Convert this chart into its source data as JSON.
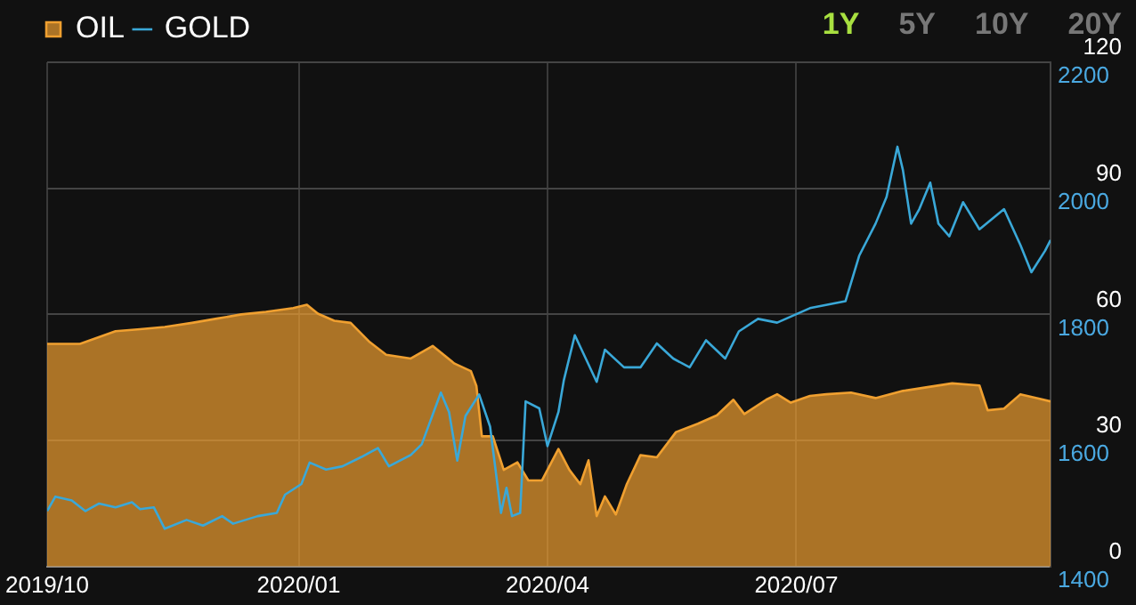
{
  "chart_data": {
    "type": "line",
    "legend": "top left",
    "grid": true,
    "marker": "none",
    "annotations": [
      "1Y",
      "5Y",
      "10Y",
      "20Y"
    ],
    "xlim": [
      "2019-10-01",
      "2020-10-02"
    ],
    "xticks": [
      {
        "value": "2019-10-01",
        "label": "2019/10"
      },
      {
        "value": "2020-01-01",
        "label": "2020/01"
      },
      {
        "value": "2020-04-01",
        "label": "2020/04"
      },
      {
        "value": "2020-07-01",
        "label": "2020/07"
      }
    ],
    "ylim": [
      0,
      120
    ],
    "yticks": [
      0,
      30,
      60,
      90,
      120
    ],
    "y2lim": [
      1400,
      2200
    ],
    "y2ticks": [
      1400,
      1600,
      1800,
      2000,
      2200
    ],
    "series": [
      {
        "name": "OIL",
        "type": "area",
        "color": "#f0a030",
        "x": [
          "2019-10-01",
          "2019-10-13",
          "2019-10-26",
          "2019-11-04",
          "2019-11-13",
          "2019-11-23",
          "2019-12-02",
          "2019-12-11",
          "2019-12-20",
          "2019-12-30",
          "2020-01-04",
          "2020-01-08",
          "2020-01-14",
          "2020-01-20",
          "2020-01-27",
          "2020-02-02",
          "2020-02-11",
          "2020-02-19",
          "2020-02-27",
          "2020-03-04",
          "2020-03-06",
          "2020-03-08",
          "2020-03-12",
          "2020-03-16",
          "2020-03-21",
          "2020-03-25",
          "2020-03-30",
          "2020-04-05",
          "2020-04-09",
          "2020-04-13",
          "2020-04-16",
          "2020-04-19",
          "2020-04-22",
          "2020-04-26",
          "2020-04-30",
          "2020-05-05",
          "2020-05-11",
          "2020-05-18",
          "2020-05-26",
          "2020-06-02",
          "2020-06-08",
          "2020-06-12",
          "2020-06-20",
          "2020-06-24",
          "2020-06-29",
          "2020-07-06",
          "2020-07-12",
          "2020-07-21",
          "2020-07-30",
          "2020-08-09",
          "2020-08-18",
          "2020-08-27",
          "2020-09-06",
          "2020-09-09",
          "2020-09-15",
          "2020-09-21",
          "2020-09-27",
          "2020-10-02"
        ],
        "values": [
          53,
          53,
          56,
          56.5,
          57,
          58,
          59,
          60,
          60.6,
          61.5,
          62.3,
          60.2,
          58.5,
          58,
          53.4,
          50.4,
          49.5,
          52.5,
          48.3,
          46.5,
          43,
          31,
          31,
          23,
          24.8,
          20.5,
          20.5,
          28,
          23,
          19.6,
          25.3,
          12,
          16.7,
          12.4,
          19.6,
          26.5,
          26,
          32,
          34,
          36,
          39.7,
          36.3,
          39.7,
          41,
          39,
          40.6,
          41,
          41.4,
          40.1,
          41.8,
          42.7,
          43.6,
          43.1,
          37.2,
          37.6,
          41,
          40.1,
          39.3
        ]
      },
      {
        "name": "GOLD",
        "type": "line",
        "axis": "y2",
        "color": "#3aa8d8",
        "x": [
          "2019-10-01",
          "2019-10-04",
          "2019-10-10",
          "2019-10-15",
          "2019-10-20",
          "2019-10-26",
          "2019-11-01",
          "2019-11-04",
          "2019-11-09",
          "2019-11-13",
          "2019-11-21",
          "2019-11-27",
          "2019-12-04",
          "2019-12-08",
          "2019-12-17",
          "2019-12-24",
          "2019-12-27",
          "2020-01-02",
          "2020-01-05",
          "2020-01-11",
          "2020-01-17",
          "2020-01-24",
          "2020-01-30",
          "2020-02-03",
          "2020-02-11",
          "2020-02-15",
          "2020-02-22",
          "2020-02-25",
          "2020-02-28",
          "2020-03-02",
          "2020-03-07",
          "2020-03-11",
          "2020-03-15",
          "2020-03-17",
          "2020-03-19",
          "2020-03-22",
          "2020-03-24",
          "2020-03-29",
          "2020-04-01",
          "2020-04-05",
          "2020-04-07",
          "2020-04-11",
          "2020-04-15",
          "2020-04-19",
          "2020-04-22",
          "2020-04-29",
          "2020-05-05",
          "2020-05-11",
          "2020-05-17",
          "2020-05-23",
          "2020-05-29",
          "2020-06-05",
          "2020-06-10",
          "2020-06-17",
          "2020-06-24",
          "2020-07-06",
          "2020-07-19",
          "2020-07-24",
          "2020-07-30",
          "2020-08-03",
          "2020-08-07",
          "2020-08-09",
          "2020-08-12",
          "2020-08-15",
          "2020-08-19",
          "2020-08-22",
          "2020-08-26",
          "2020-08-31",
          "2020-09-06",
          "2020-09-15",
          "2020-09-21",
          "2020-09-25",
          "2020-09-30",
          "2020-10-02"
        ],
        "values": [
          1488,
          1511,
          1505,
          1488,
          1500,
          1494,
          1502,
          1491,
          1494,
          1460,
          1474,
          1465,
          1480,
          1468,
          1480,
          1485,
          1514,
          1531,
          1565,
          1554,
          1559,
          1574,
          1588,
          1559,
          1577,
          1594,
          1676,
          1645,
          1568,
          1639,
          1673,
          1622,
          1485,
          1525,
          1480,
          1485,
          1662,
          1651,
          1591,
          1645,
          1696,
          1767,
          1730,
          1693,
          1744,
          1716,
          1716,
          1754,
          1730,
          1716,
          1759,
          1730,
          1773,
          1793,
          1787,
          1810,
          1821,
          1893,
          1944,
          1986,
          2066,
          2029,
          1944,
          1967,
          2009,
          1944,
          1924,
          1978,
          1935,
          1967,
          1910,
          1867,
          1901,
          1918
        ]
      }
    ]
  }
}
